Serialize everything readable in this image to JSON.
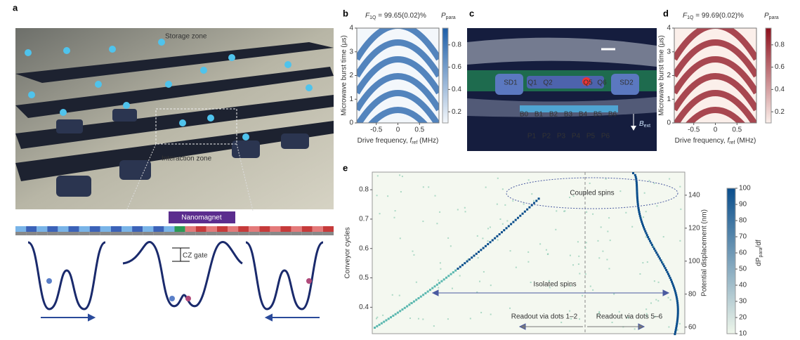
{
  "panel_labels": [
    "a",
    "b",
    "c",
    "d",
    "e"
  ],
  "figure_a": {
    "storage": "Storage zone",
    "interaction": "Interaction zone",
    "nanomagnet": "Nanomagnet",
    "cz": "CZ gate"
  },
  "figure_c": {
    "gates": [
      "SD1",
      "Q1",
      "Q2",
      "Q5",
      "Q6",
      "SD2"
    ],
    "barriers": [
      "B0",
      "B1",
      "B2",
      "B3",
      "B4",
      "B5",
      "B6"
    ],
    "plungers": [
      "P1",
      "P2",
      "P3",
      "P4",
      "P5",
      "P6"
    ],
    "field": {
      "symbol": "B",
      "subscript": "ext"
    }
  },
  "chart_data": [
    {
      "type": "heatmap",
      "title": {
        "symbol": "F",
        "subscript": "1Q",
        "text": " = 99.65(0.02)%"
      },
      "colorbar_label": {
        "symbol": "P",
        "subscript": "para"
      },
      "x_label": {
        "text": "Drive frequency, ",
        "symbol": "f",
        "subscript": "ref",
        "unit": " (MHz)"
      },
      "y_label": "Microwave burst time (μs)",
      "xlim": [
        -0.95,
        0.95
      ],
      "xticks": [
        -0.5,
        0,
        0.5
      ],
      "ylim": [
        0,
        4
      ],
      "yticks": [
        0,
        1,
        2,
        3,
        4
      ],
      "colorbar_lim": [
        0.1,
        0.95
      ],
      "colorbar_ticks": [
        0.2,
        0.4,
        0.6,
        0.8
      ],
      "colormap": [
        "#f3f7fb",
        "#1d5ea8"
      ]
    },
    {
      "type": "heatmap",
      "title": {
        "symbol": "F",
        "subscript": "1Q",
        "text": " = 99.69(0.02)%"
      },
      "colorbar_label": {
        "symbol": "P",
        "subscript": "para"
      },
      "x_label": {
        "text": "Drive frequency, ",
        "symbol": "f",
        "subscript": "ref",
        "unit": " (MHz)"
      },
      "y_label": "Microwave burst time (μs)",
      "xlim": [
        -0.95,
        0.95
      ],
      "xticks": [
        -0.5,
        0,
        0.5
      ],
      "ylim": [
        0,
        4
      ],
      "yticks": [
        0,
        1,
        2,
        3,
        4
      ],
      "colorbar_lim": [
        0.1,
        0.95
      ],
      "colorbar_ticks": [
        0.2,
        0.4,
        0.6,
        0.8
      ],
      "colormap": [
        "#fbefea",
        "#8c0f1c"
      ]
    },
    {
      "type": "scatter",
      "y_label": "Conveyor cycles",
      "y2_label": "Potential displacement (nm)",
      "colorbar_label": {
        "text": "dP",
        "subscript": "para",
        "unit": "/df"
      },
      "ylim": [
        0.31,
        0.86
      ],
      "yticks": [
        0.4,
        0.5,
        0.6,
        0.7,
        0.8
      ],
      "y2lim": [
        56,
        154
      ],
      "y2ticks": [
        60,
        80,
        100,
        120,
        140
      ],
      "colorbar_lim": [
        10,
        100
      ],
      "colorbar_ticks": [
        10,
        20,
        30,
        40,
        50,
        60,
        70,
        80,
        90,
        100
      ],
      "colormap": [
        "#eef6ea",
        "#0a4e8c"
      ],
      "annotations": [
        "Coupled spins",
        "Isolated spins",
        "Readout via dots 1–2",
        "Readout via dots 5–6"
      ]
    }
  ]
}
